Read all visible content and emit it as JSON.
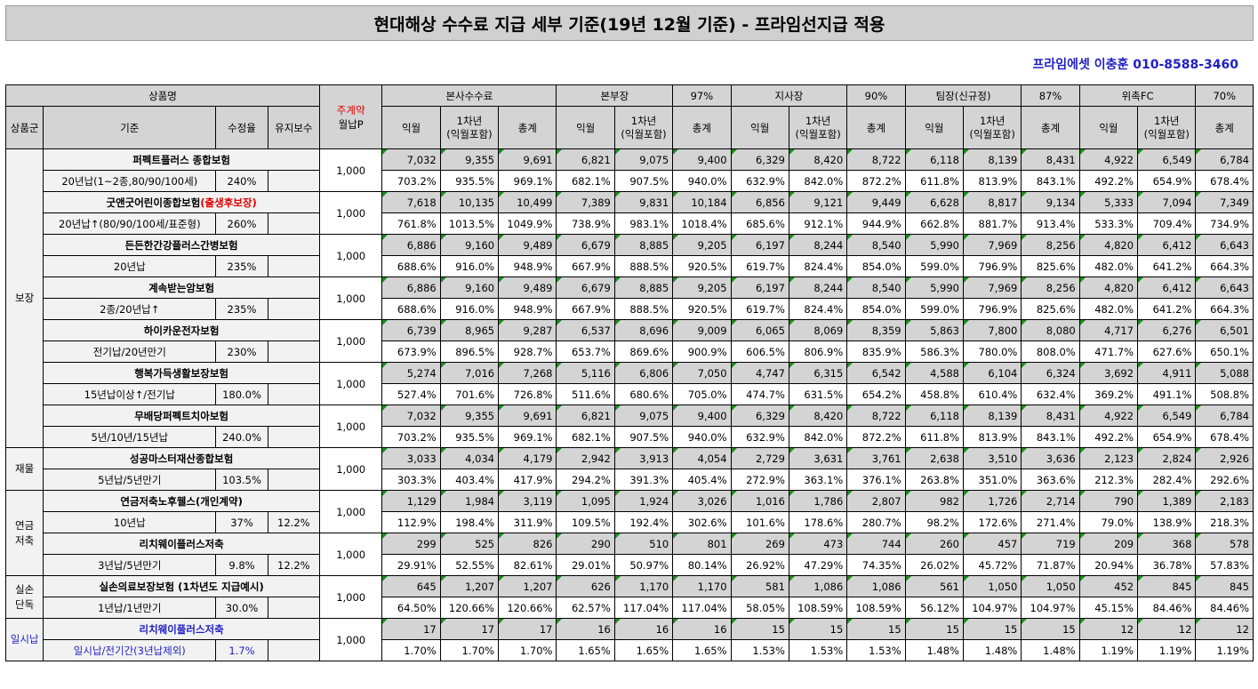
{
  "title": "현대해상 수수료 지급 세부 기준(19년 12월 기준) - 프라임선지급 적용",
  "contact": "프라임에셋 이충훈 010-8588-3460",
  "headers": {
    "product_name": "상품명",
    "main_contract": "주계약",
    "monthly_premium": "월납P",
    "product_group": "상품군",
    "criteria": "기준",
    "correction_rate": "수정율",
    "maintenance_fee": "유지보수",
    "tiers": [
      {
        "name": "본사수수료",
        "pct": ""
      },
      {
        "name": "본부장",
        "pct": "97%"
      },
      {
        "name": "지사장",
        "pct": "90%"
      },
      {
        "name": "팀장(신규정)",
        "pct": "87%"
      },
      {
        "name": "위촉FC",
        "pct": "70%"
      }
    ],
    "sub": {
      "month": "익월",
      "year1a": "1차년",
      "year1b": "(익월포함)",
      "total": "총계"
    }
  },
  "groups": [
    {
      "name": "보장",
      "rows": 7
    },
    {
      "name": "재물",
      "rows": 1
    },
    {
      "name": "연금\n저축",
      "rows": 2
    },
    {
      "name": "실손\n단독",
      "rows": 1
    },
    {
      "name": "일시납",
      "rows": 1
    }
  ],
  "products": [
    {
      "name": "퍼펙트플러스 종합보험",
      "name_note": "",
      "std": "20년납(1~2종,80/90/100세)",
      "rate": "240%",
      "maint": "",
      "premium": "1,000",
      "amounts": [
        "7,032",
        "9,355",
        "9,691",
        "6,821",
        "9,075",
        "9,400",
        "6,329",
        "8,420",
        "8,722",
        "6,118",
        "8,139",
        "8,431",
        "4,922",
        "6,549",
        "6,784"
      ],
      "pcts": [
        "703.2%",
        "935.5%",
        "969.1%",
        "682.1%",
        "907.5%",
        "940.0%",
        "632.9%",
        "842.0%",
        "872.2%",
        "611.8%",
        "813.9%",
        "843.1%",
        "492.2%",
        "654.9%",
        "678.4%"
      ]
    },
    {
      "name": "굿앤굿어린이종합보험",
      "name_note": "(출생후보장)",
      "std": "20년납↑(80/90/100세/표준형)",
      "rate": "260%",
      "maint": "",
      "premium": "1,000",
      "amounts": [
        "7,618",
        "10,135",
        "10,499",
        "7,389",
        "9,831",
        "10,184",
        "6,856",
        "9,121",
        "9,449",
        "6,628",
        "8,817",
        "9,134",
        "5,333",
        "7,094",
        "7,349"
      ],
      "pcts": [
        "761.8%",
        "1013.5%",
        "1049.9%",
        "738.9%",
        "983.1%",
        "1018.4%",
        "685.6%",
        "912.1%",
        "944.9%",
        "662.8%",
        "881.7%",
        "913.4%",
        "533.3%",
        "709.4%",
        "734.9%"
      ]
    },
    {
      "name": "든든한간강플러스간병보험",
      "name_note": "",
      "std": "20년납",
      "rate": "235%",
      "maint": "",
      "premium": "1,000",
      "amounts": [
        "6,886",
        "9,160",
        "9,489",
        "6,679",
        "8,885",
        "9,205",
        "6,197",
        "8,244",
        "8,540",
        "5,990",
        "7,969",
        "8,256",
        "4,820",
        "6,412",
        "6,643"
      ],
      "pcts": [
        "688.6%",
        "916.0%",
        "948.9%",
        "667.9%",
        "888.5%",
        "920.5%",
        "619.7%",
        "824.4%",
        "854.0%",
        "599.0%",
        "796.9%",
        "825.6%",
        "482.0%",
        "641.2%",
        "664.3%"
      ]
    },
    {
      "name": "계속받는암보험",
      "name_note": "",
      "std": "2종/20년납↑",
      "rate": "235%",
      "maint": "",
      "premium": "1,000",
      "amounts": [
        "6,886",
        "9,160",
        "9,489",
        "6,679",
        "8,885",
        "9,205",
        "6,197",
        "8,244",
        "8,540",
        "5,990",
        "7,969",
        "8,256",
        "4,820",
        "6,412",
        "6,643"
      ],
      "pcts": [
        "688.6%",
        "916.0%",
        "948.9%",
        "667.9%",
        "888.5%",
        "920.5%",
        "619.7%",
        "824.4%",
        "854.0%",
        "599.0%",
        "796.9%",
        "825.6%",
        "482.0%",
        "641.2%",
        "664.3%"
      ]
    },
    {
      "name": "하이카운전자보험",
      "name_note": "",
      "std": "전기납/20년만기",
      "rate": "230%",
      "maint": "",
      "premium": "1,000",
      "amounts": [
        "6,739",
        "8,965",
        "9,287",
        "6,537",
        "8,696",
        "9,009",
        "6,065",
        "8,069",
        "8,359",
        "5,863",
        "7,800",
        "8,080",
        "4,717",
        "6,276",
        "6,501"
      ],
      "pcts": [
        "673.9%",
        "896.5%",
        "928.7%",
        "653.7%",
        "869.6%",
        "900.9%",
        "606.5%",
        "806.9%",
        "835.9%",
        "586.3%",
        "780.0%",
        "808.0%",
        "471.7%",
        "627.6%",
        "650.1%"
      ]
    },
    {
      "name": "행복가득생활보장보험",
      "name_note": "",
      "std": "15년납이상↑/전기납",
      "rate": "180.0%",
      "maint": "",
      "premium": "1,000",
      "amounts": [
        "5,274",
        "7,016",
        "7,268",
        "5,116",
        "6,806",
        "7,050",
        "4,747",
        "6,315",
        "6,542",
        "4,588",
        "6,104",
        "6,324",
        "3,692",
        "4,911",
        "5,088"
      ],
      "pcts": [
        "527.4%",
        "701.6%",
        "726.8%",
        "511.6%",
        "680.6%",
        "705.0%",
        "474.7%",
        "631.5%",
        "654.2%",
        "458.8%",
        "610.4%",
        "632.4%",
        "369.2%",
        "491.1%",
        "508.8%"
      ]
    },
    {
      "name": "무배당퍼펙트치아보험",
      "name_note": "",
      "std": "5년/10년/15년납",
      "rate": "240.0%",
      "maint": "",
      "premium": "1,000",
      "amounts": [
        "7,032",
        "9,355",
        "9,691",
        "6,821",
        "9,075",
        "9,400",
        "6,329",
        "8,420",
        "8,722",
        "6,118",
        "8,139",
        "8,431",
        "4,922",
        "6,549",
        "6,784"
      ],
      "pcts": [
        "703.2%",
        "935.5%",
        "969.1%",
        "682.1%",
        "907.5%",
        "940.0%",
        "632.9%",
        "842.0%",
        "872.2%",
        "611.8%",
        "813.9%",
        "843.1%",
        "492.2%",
        "654.9%",
        "678.4%"
      ]
    },
    {
      "name": "성공마스터재산종합보험",
      "name_note": "",
      "std": "5년납/5년만기",
      "rate": "103.5%",
      "maint": "",
      "premium": "1,000",
      "amounts": [
        "3,033",
        "4,034",
        "4,179",
        "2,942",
        "3,913",
        "4,054",
        "2,729",
        "3,631",
        "3,761",
        "2,638",
        "3,510",
        "3,636",
        "2,123",
        "2,824",
        "2,926"
      ],
      "pcts": [
        "303.3%",
        "403.4%",
        "417.9%",
        "294.2%",
        "391.3%",
        "405.4%",
        "272.9%",
        "363.1%",
        "376.1%",
        "263.8%",
        "351.0%",
        "363.6%",
        "212.3%",
        "282.4%",
        "292.6%"
      ]
    },
    {
      "name": "연금저축노후웰스(개인계약)",
      "name_note": "",
      "std": "10년납",
      "rate": "37%",
      "maint": "12.2%",
      "premium": "1,000",
      "amounts": [
        "1,129",
        "1,984",
        "3,119",
        "1,095",
        "1,924",
        "3,026",
        "1,016",
        "1,786",
        "2,807",
        "982",
        "1,726",
        "2,714",
        "790",
        "1,389",
        "2,183"
      ],
      "pcts": [
        "112.9%",
        "198.4%",
        "311.9%",
        "109.5%",
        "192.4%",
        "302.6%",
        "101.6%",
        "178.6%",
        "280.7%",
        "98.2%",
        "172.6%",
        "271.4%",
        "79.0%",
        "138.9%",
        "218.3%"
      ]
    },
    {
      "name": "리치웨이플러스저축",
      "name_note": "",
      "std": "3년납/5년만기",
      "rate": "9.8%",
      "maint": "12.2%",
      "premium": "1,000",
      "amounts": [
        "299",
        "525",
        "826",
        "290",
        "510",
        "801",
        "269",
        "473",
        "744",
        "260",
        "457",
        "719",
        "209",
        "368",
        "578"
      ],
      "pcts": [
        "29.91%",
        "52.55%",
        "82.61%",
        "29.01%",
        "50.97%",
        "80.14%",
        "26.92%",
        "47.29%",
        "74.35%",
        "26.02%",
        "45.72%",
        "71.87%",
        "20.94%",
        "36.78%",
        "57.83%"
      ]
    },
    {
      "name": "실손의료보장보험 (1차년도 지급예시)",
      "name_note": "",
      "std": "1년납/1년만기",
      "rate": "30.0%",
      "maint": "",
      "premium": "1,000",
      "amounts": [
        "645",
        "1,207",
        "1,207",
        "626",
        "1,170",
        "1,170",
        "581",
        "1,086",
        "1,086",
        "561",
        "1,050",
        "1,050",
        "452",
        "845",
        "845"
      ],
      "pcts": [
        "64.50%",
        "120.66%",
        "120.66%",
        "62.57%",
        "117.04%",
        "117.04%",
        "58.05%",
        "108.59%",
        "108.59%",
        "56.12%",
        "104.97%",
        "104.97%",
        "45.15%",
        "84.46%",
        "84.46%"
      ]
    },
    {
      "name": "리치웨이플러스저축",
      "name_note": "",
      "std": "일시납/전기간(3년납제외)",
      "rate": "1.7%",
      "maint": "",
      "premium": "1,000",
      "blue": true,
      "amounts": [
        "17",
        "17",
        "17",
        "16",
        "16",
        "16",
        "15",
        "15",
        "15",
        "15",
        "15",
        "15",
        "12",
        "12",
        "12"
      ],
      "pcts": [
        "1.70%",
        "1.70%",
        "1.70%",
        "1.65%",
        "1.65%",
        "1.65%",
        "1.53%",
        "1.53%",
        "1.53%",
        "1.48%",
        "1.48%",
        "1.48%",
        "1.19%",
        "1.19%",
        "1.19%"
      ]
    }
  ]
}
